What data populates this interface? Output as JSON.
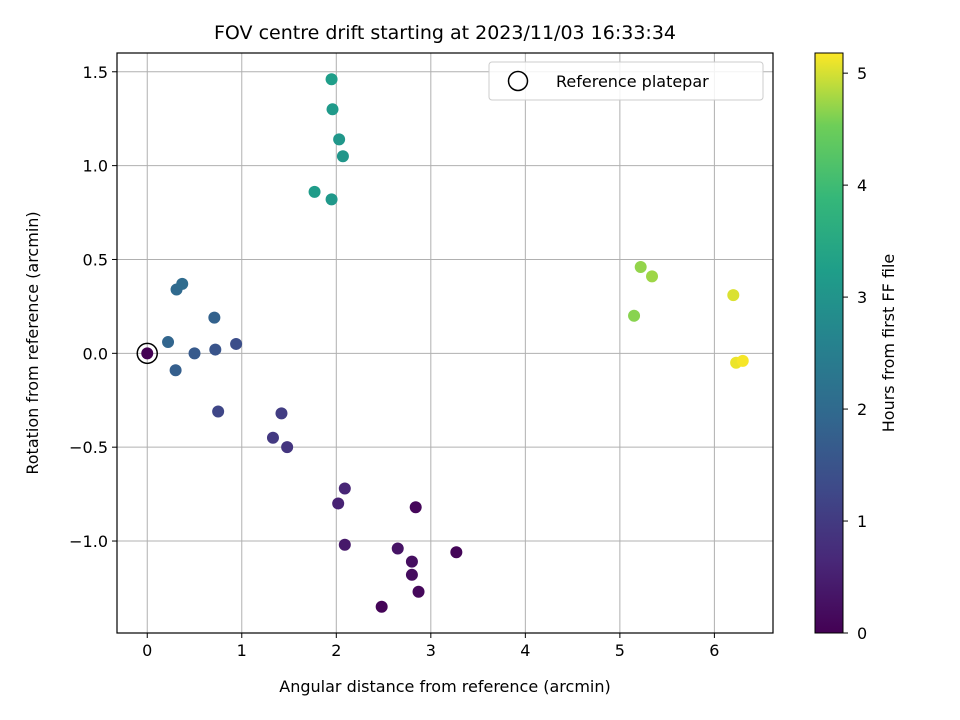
{
  "chart_data": {
    "type": "scatter",
    "title": "FOV centre drift starting at 2023/11/03 16:33:34",
    "xlabel": "Angular distance from reference (arcmin)",
    "ylabel": "Rotation from reference (arcmin)",
    "xlim": [
      -0.32,
      6.62
    ],
    "ylim": [
      -1.49,
      1.6
    ],
    "xticks": [
      0,
      1,
      2,
      3,
      4,
      5,
      6
    ],
    "xtick_labels": [
      "0",
      "1",
      "2",
      "3",
      "4",
      "5",
      "6"
    ],
    "yticks": [
      1.5,
      1.0,
      0.5,
      0.0,
      -0.5,
      -1.0
    ],
    "ytick_labels": [
      "1.5",
      "1.0",
      "0.5",
      "0.0",
      "−0.5",
      "−1.0"
    ],
    "grid": true,
    "legend": {
      "position": "top-right",
      "entries": [
        "Reference platepar"
      ]
    },
    "reference": {
      "x": 0.0,
      "y": 0.0,
      "label": "Reference platepar"
    },
    "colorbar": {
      "label": "Hours from first FF file",
      "range": [
        0,
        5.18
      ],
      "ticks": [
        0,
        1,
        2,
        3,
        4,
        5
      ],
      "tick_labels": [
        "0",
        "1",
        "2",
        "3",
        "4",
        "5"
      ],
      "colormap": "viridis"
    },
    "points": [
      {
        "x": 2.48,
        "y": -1.35,
        "hours": 0.05
      },
      {
        "x": 3.27,
        "y": -1.06,
        "hours": 0.08
      },
      {
        "x": 2.84,
        "y": -0.82,
        "hours": 0.1
      },
      {
        "x": 2.87,
        "y": -1.27,
        "hours": 0.12
      },
      {
        "x": 2.8,
        "y": -1.18,
        "hours": 0.18
      },
      {
        "x": 2.8,
        "y": -1.11,
        "hours": 0.22
      },
      {
        "x": 2.65,
        "y": -1.04,
        "hours": 0.3
      },
      {
        "x": 2.09,
        "y": -1.02,
        "hours": 0.4
      },
      {
        "x": 2.02,
        "y": -0.8,
        "hours": 0.55
      },
      {
        "x": 2.09,
        "y": -0.72,
        "hours": 0.62
      },
      {
        "x": 1.48,
        "y": -0.5,
        "hours": 0.9
      },
      {
        "x": 1.33,
        "y": -0.45,
        "hours": 0.98
      },
      {
        "x": 1.42,
        "y": -0.32,
        "hours": 1.05
      },
      {
        "x": 0.75,
        "y": -0.31,
        "hours": 1.22
      },
      {
        "x": 0.94,
        "y": 0.05,
        "hours": 1.38
      },
      {
        "x": 0.72,
        "y": 0.02,
        "hours": 1.52
      },
      {
        "x": 0.5,
        "y": 0.0,
        "hours": 1.65
      },
      {
        "x": 0.3,
        "y": -0.09,
        "hours": 1.75
      },
      {
        "x": 0.71,
        "y": 0.19,
        "hours": 1.82
      },
      {
        "x": 0.22,
        "y": 0.06,
        "hours": 1.9
      },
      {
        "x": 0.31,
        "y": 0.34,
        "hours": 2.0
      },
      {
        "x": 0.37,
        "y": 0.37,
        "hours": 2.05
      },
      {
        "x": 0.0,
        "y": 0.0,
        "hours": 0.0
      },
      {
        "x": 1.95,
        "y": 0.82,
        "hours": 3.1
      },
      {
        "x": 1.77,
        "y": 0.86,
        "hours": 3.2
      },
      {
        "x": 2.07,
        "y": 1.05,
        "hours": 3.05
      },
      {
        "x": 2.03,
        "y": 1.14,
        "hours": 3.08
      },
      {
        "x": 1.96,
        "y": 1.3,
        "hours": 3.15
      },
      {
        "x": 1.95,
        "y": 1.46,
        "hours": 3.25
      },
      {
        "x": 5.15,
        "y": 0.2,
        "hours": 4.65
      },
      {
        "x": 5.22,
        "y": 0.46,
        "hours": 4.7
      },
      {
        "x": 5.34,
        "y": 0.41,
        "hours": 4.75
      },
      {
        "x": 6.2,
        "y": 0.31,
        "hours": 5.02
      },
      {
        "x": 6.23,
        "y": -0.05,
        "hours": 5.1
      },
      {
        "x": 6.3,
        "y": -0.04,
        "hours": 5.15
      }
    ]
  }
}
